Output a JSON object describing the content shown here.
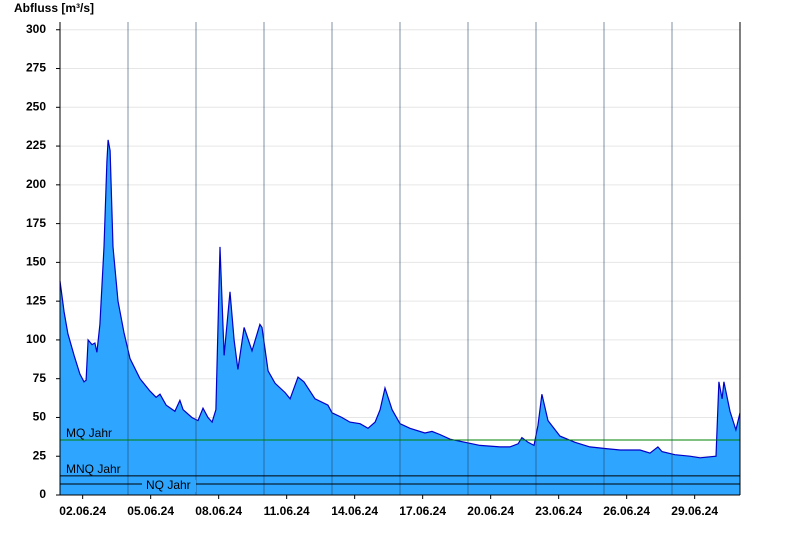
{
  "chart_data": {
    "type": "area",
    "y_label": "Abfluss [m³/s]",
    "color": "#2ea6ff",
    "line_color": "#0000c8",
    "x": [
      1.0,
      1.18,
      1.35,
      1.62,
      1.88,
      2.06,
      2.15,
      2.24,
      2.41,
      2.54,
      2.63,
      2.76,
      2.94,
      3.07,
      3.12,
      3.21,
      3.34,
      3.56,
      3.82,
      4.09,
      4.53,
      4.97,
      5.24,
      5.41,
      5.68,
      6.07,
      6.29,
      6.43,
      6.82,
      7.09,
      7.31,
      7.53,
      7.71,
      7.88,
      8.06,
      8.24,
      8.5,
      8.68,
      8.85,
      9.12,
      9.47,
      9.82,
      9.91,
      10.18,
      10.49,
      10.93,
      11.15,
      11.5,
      11.76,
      12.25,
      12.82,
      13.0,
      13.44,
      13.79,
      14.24,
      14.59,
      14.9,
      15.12,
      15.34,
      15.65,
      16.0,
      16.44,
      17.1,
      17.41,
      17.76,
      18.21,
      18.87,
      19.53,
      20.41,
      20.85,
      21.21,
      21.38,
      21.65,
      21.91,
      22.09,
      22.26,
      22.53,
      23.06,
      23.72,
      24.38,
      25.04,
      25.71,
      26.59,
      27.03,
      27.38,
      27.56,
      28.13,
      28.79,
      29.24,
      29.94,
      30.07,
      30.21,
      30.29,
      30.56,
      30.82,
      31.0
    ],
    "values": [
      138,
      118,
      104,
      90,
      78,
      73,
      74,
      100,
      97,
      98,
      92,
      110,
      160,
      215,
      229,
      222,
      160,
      125,
      105,
      88,
      75,
      67,
      63,
      65,
      58,
      54,
      61,
      55,
      50,
      48,
      56,
      50,
      47,
      55,
      160,
      90,
      131,
      100,
      81,
      108,
      93,
      110,
      108,
      80,
      72,
      66,
      62,
      76,
      73,
      62,
      58,
      53,
      50,
      47,
      46,
      43,
      47,
      55,
      69,
      55,
      46,
      43,
      40,
      41,
      39,
      36,
      34,
      32,
      31,
      31,
      33,
      37,
      34,
      32,
      45,
      65,
      48,
      38,
      34,
      31,
      30,
      29,
      29,
      27,
      31,
      28,
      26,
      25,
      24,
      25,
      73,
      62,
      73,
      54,
      42,
      53
    ],
    "xlim": [
      1,
      31
    ],
    "xticks": [
      {
        "value": 2,
        "label": "02.06.24"
      },
      {
        "value": 5,
        "label": "05.06.24"
      },
      {
        "value": 8,
        "label": "08.06.24"
      },
      {
        "value": 11,
        "label": "11.06.24"
      },
      {
        "value": 14,
        "label": "14.06.24"
      },
      {
        "value": 17,
        "label": "17.06.24"
      },
      {
        "value": 20,
        "label": "20.06.24"
      },
      {
        "value": 23,
        "label": "23.06.24"
      },
      {
        "value": 26,
        "label": "26.06.24"
      },
      {
        "value": 29,
        "label": "29.06.24"
      }
    ],
    "xgrid": [
      4,
      7,
      10,
      13,
      16,
      19,
      22,
      25,
      28
    ],
    "ylim": [
      0,
      305
    ],
    "yticks": [
      0,
      25,
      50,
      75,
      100,
      125,
      150,
      175,
      200,
      225,
      250,
      275,
      300
    ],
    "grid": true,
    "reference_lines": [
      {
        "label": "MQ Jahr",
        "value": 35.5,
        "color": "#008000"
      },
      {
        "label": "MNQ Jahr",
        "value": 12.3,
        "color": "#000000"
      },
      {
        "label": "NQ Jahr",
        "value": 7.1,
        "color": "#000000"
      }
    ]
  }
}
